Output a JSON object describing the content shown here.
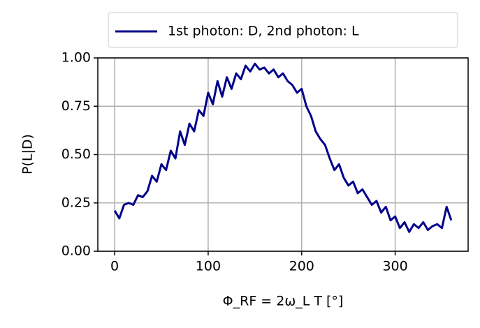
{
  "chart_data": {
    "type": "line",
    "xlabel": "Φ_RF = 2ω_L T [°]",
    "ylabel": "P(L|D)",
    "x": [
      0,
      5,
      10,
      15,
      20,
      25,
      30,
      35,
      40,
      45,
      50,
      55,
      60,
      65,
      70,
      75,
      80,
      85,
      90,
      95,
      100,
      105,
      110,
      115,
      120,
      125,
      130,
      135,
      140,
      145,
      150,
      155,
      160,
      165,
      170,
      175,
      180,
      185,
      190,
      195,
      200,
      205,
      210,
      215,
      220,
      225,
      230,
      235,
      240,
      245,
      250,
      255,
      260,
      265,
      270,
      275,
      280,
      285,
      290,
      295,
      300,
      305,
      310,
      315,
      320,
      325,
      330,
      335,
      340,
      345,
      350,
      355,
      360
    ],
    "series": [
      {
        "name": "1st photon: D, 2nd photon: L",
        "color": "#00008b",
        "values": [
          0.21,
          0.17,
          0.24,
          0.25,
          0.24,
          0.29,
          0.28,
          0.31,
          0.39,
          0.36,
          0.45,
          0.42,
          0.52,
          0.48,
          0.62,
          0.55,
          0.66,
          0.62,
          0.73,
          0.7,
          0.82,
          0.76,
          0.88,
          0.8,
          0.9,
          0.84,
          0.92,
          0.89,
          0.96,
          0.93,
          0.97,
          0.94,
          0.95,
          0.92,
          0.94,
          0.9,
          0.92,
          0.88,
          0.86,
          0.82,
          0.84,
          0.75,
          0.7,
          0.62,
          0.58,
          0.55,
          0.48,
          0.42,
          0.45,
          0.38,
          0.34,
          0.36,
          0.3,
          0.32,
          0.28,
          0.24,
          0.26,
          0.2,
          0.23,
          0.16,
          0.18,
          0.12,
          0.15,
          0.1,
          0.14,
          0.12,
          0.15,
          0.11,
          0.13,
          0.14,
          0.12,
          0.23,
          0.16
        ]
      }
    ],
    "xlim": [
      -18,
      378
    ],
    "ylim": [
      0,
      1
    ],
    "xticks": [
      0,
      100,
      200,
      300
    ],
    "yticks": [
      {
        "value": 0,
        "label": "0.00"
      },
      {
        "value": 0.25,
        "label": "0.25"
      },
      {
        "value": 0.5,
        "label": "0.50"
      },
      {
        "value": 0.75,
        "label": "0.75"
      },
      {
        "value": 1,
        "label": "1.00"
      }
    ],
    "grid": true,
    "legend": "top"
  }
}
